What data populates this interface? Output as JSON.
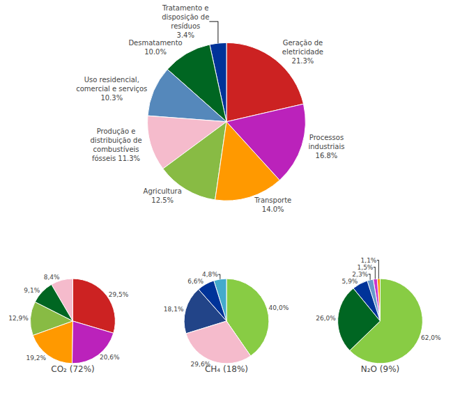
{
  "chart_data": [
    {
      "type": "pie",
      "values": [
        21.3,
        3.4,
        10.0,
        10.3,
        11.3,
        12.5,
        14.0,
        16.8
      ],
      "value_labels": [
        "Geração de\neletricidade\n21.3%",
        "Tratamento e\ndisposição de\nresíduos\n3.4%",
        "Desmatamento\n10.0%",
        "Uso residencial,\ncomercial e serviços\n10.3%",
        "Produção e\ndistribuição de\ncombustíveis\nfósseis 11.3%",
        "Agricultura\n12.5%",
        "Transporte\n14.0%",
        "Processos\nindustriais\n16.8%"
      ],
      "colors": [
        "#cc2222",
        "#003399",
        "#006622",
        "#5588bb",
        "#f5bbcc",
        "#88bb44",
        "#ff9900",
        "#bb22bb"
      ],
      "data_labels": true
    },
    {
      "type": "pie",
      "title": "CO₂ (72%)",
      "values": [
        29.5,
        8.4,
        9.1,
        12.9,
        19.2,
        20.6
      ],
      "value_labels": [
        "29,5%",
        "8,4%",
        "9,1%",
        "12,9%",
        "19,2%",
        "20,6%"
      ],
      "colors": [
        "#cc2222",
        "#f5bbcc",
        "#006622",
        "#88bb44",
        "#ff9900",
        "#bb22bb"
      ],
      "data_labels": true
    },
    {
      "type": "pie",
      "title": "CH₄ (18%)",
      "values": [
        40.0,
        4.8,
        6.6,
        18.1,
        29.6
      ],
      "value_labels": [
        "40,0%",
        "4,8%",
        "6,6%",
        "18,1%",
        "29,6%"
      ],
      "colors": [
        "#88cc44",
        "#44aacc",
        "#003399",
        "#224488",
        "#f5bbcc"
      ],
      "data_labels": true
    },
    {
      "type": "pie",
      "title": "N₂O (9%)",
      "values": [
        62.0,
        1.1,
        1.5,
        2.3,
        5.9,
        26.0
      ],
      "value_labels": [
        "62,0%",
        "1,1%",
        "1,5%",
        "2,3%",
        "5,9%",
        "26,0%"
      ],
      "colors": [
        "#88cc44",
        "#ff9900",
        "#cc33cc",
        "#6699cc",
        "#003399",
        "#006622"
      ],
      "data_labels": true
    }
  ]
}
